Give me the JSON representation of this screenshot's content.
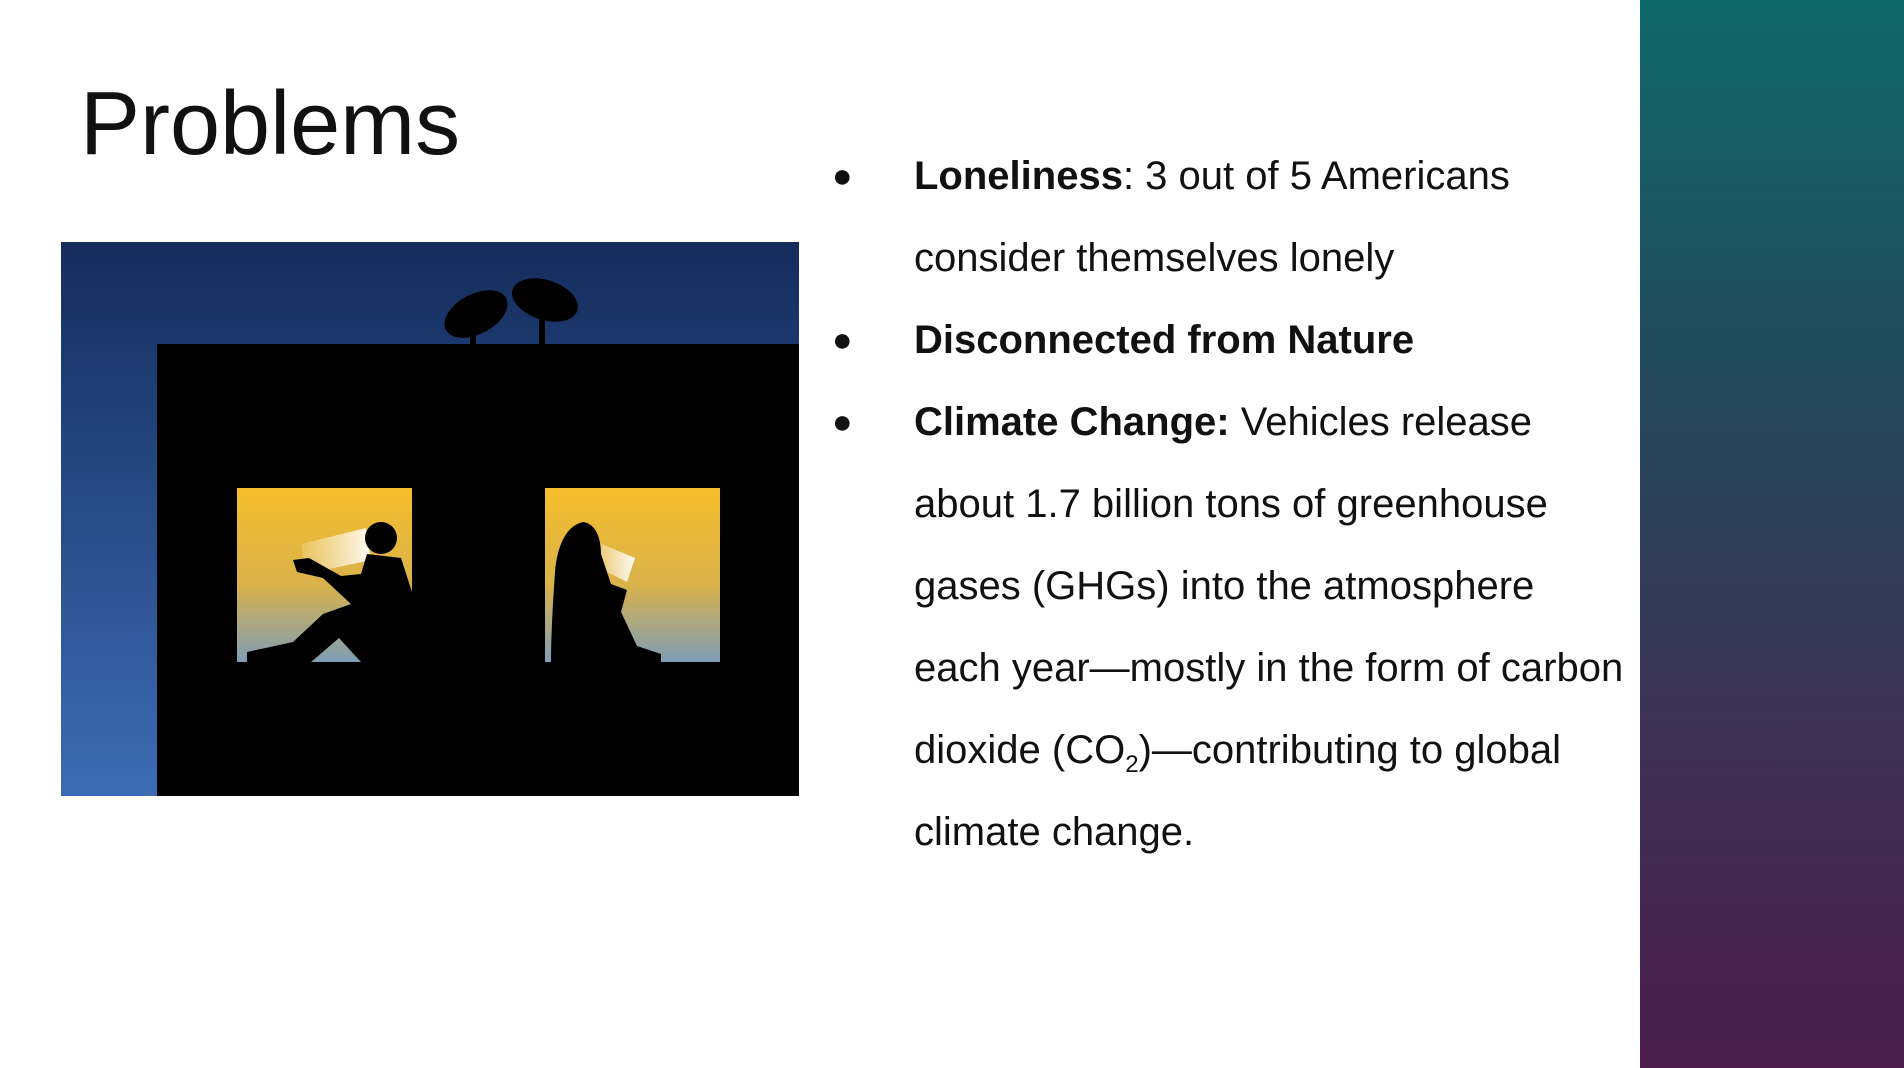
{
  "slide": {
    "title": "Problems",
    "bullet_glyph": "●",
    "bullets": [
      {
        "bold": "Loneliness",
        "text": ": 3 out of 5 Americans consider themselves lonely"
      },
      {
        "bold": "Disconnected from Nature",
        "text": ""
      },
      {
        "bold": "Climate Change:",
        "text": " Vehicles release about 1.7 billion tons of greenhouse gases (GHGs) into the atmosphere each year—mostly in the form of carbon dioxide (CO",
        "sub": "2",
        "text_after": ")—contributing to global climate change."
      }
    ],
    "image": {
      "description_icon": "people-in-windows-illustration"
    }
  },
  "colors": {
    "side_band_top": "#0f6868",
    "side_band_bottom": "#4b1e4c",
    "sky_top": "#152c5c",
    "sky_bottom": "#3d6cb5",
    "window_top": "#f6be2c",
    "window_bottom": "#7f9db5",
    "text": "#111111"
  }
}
